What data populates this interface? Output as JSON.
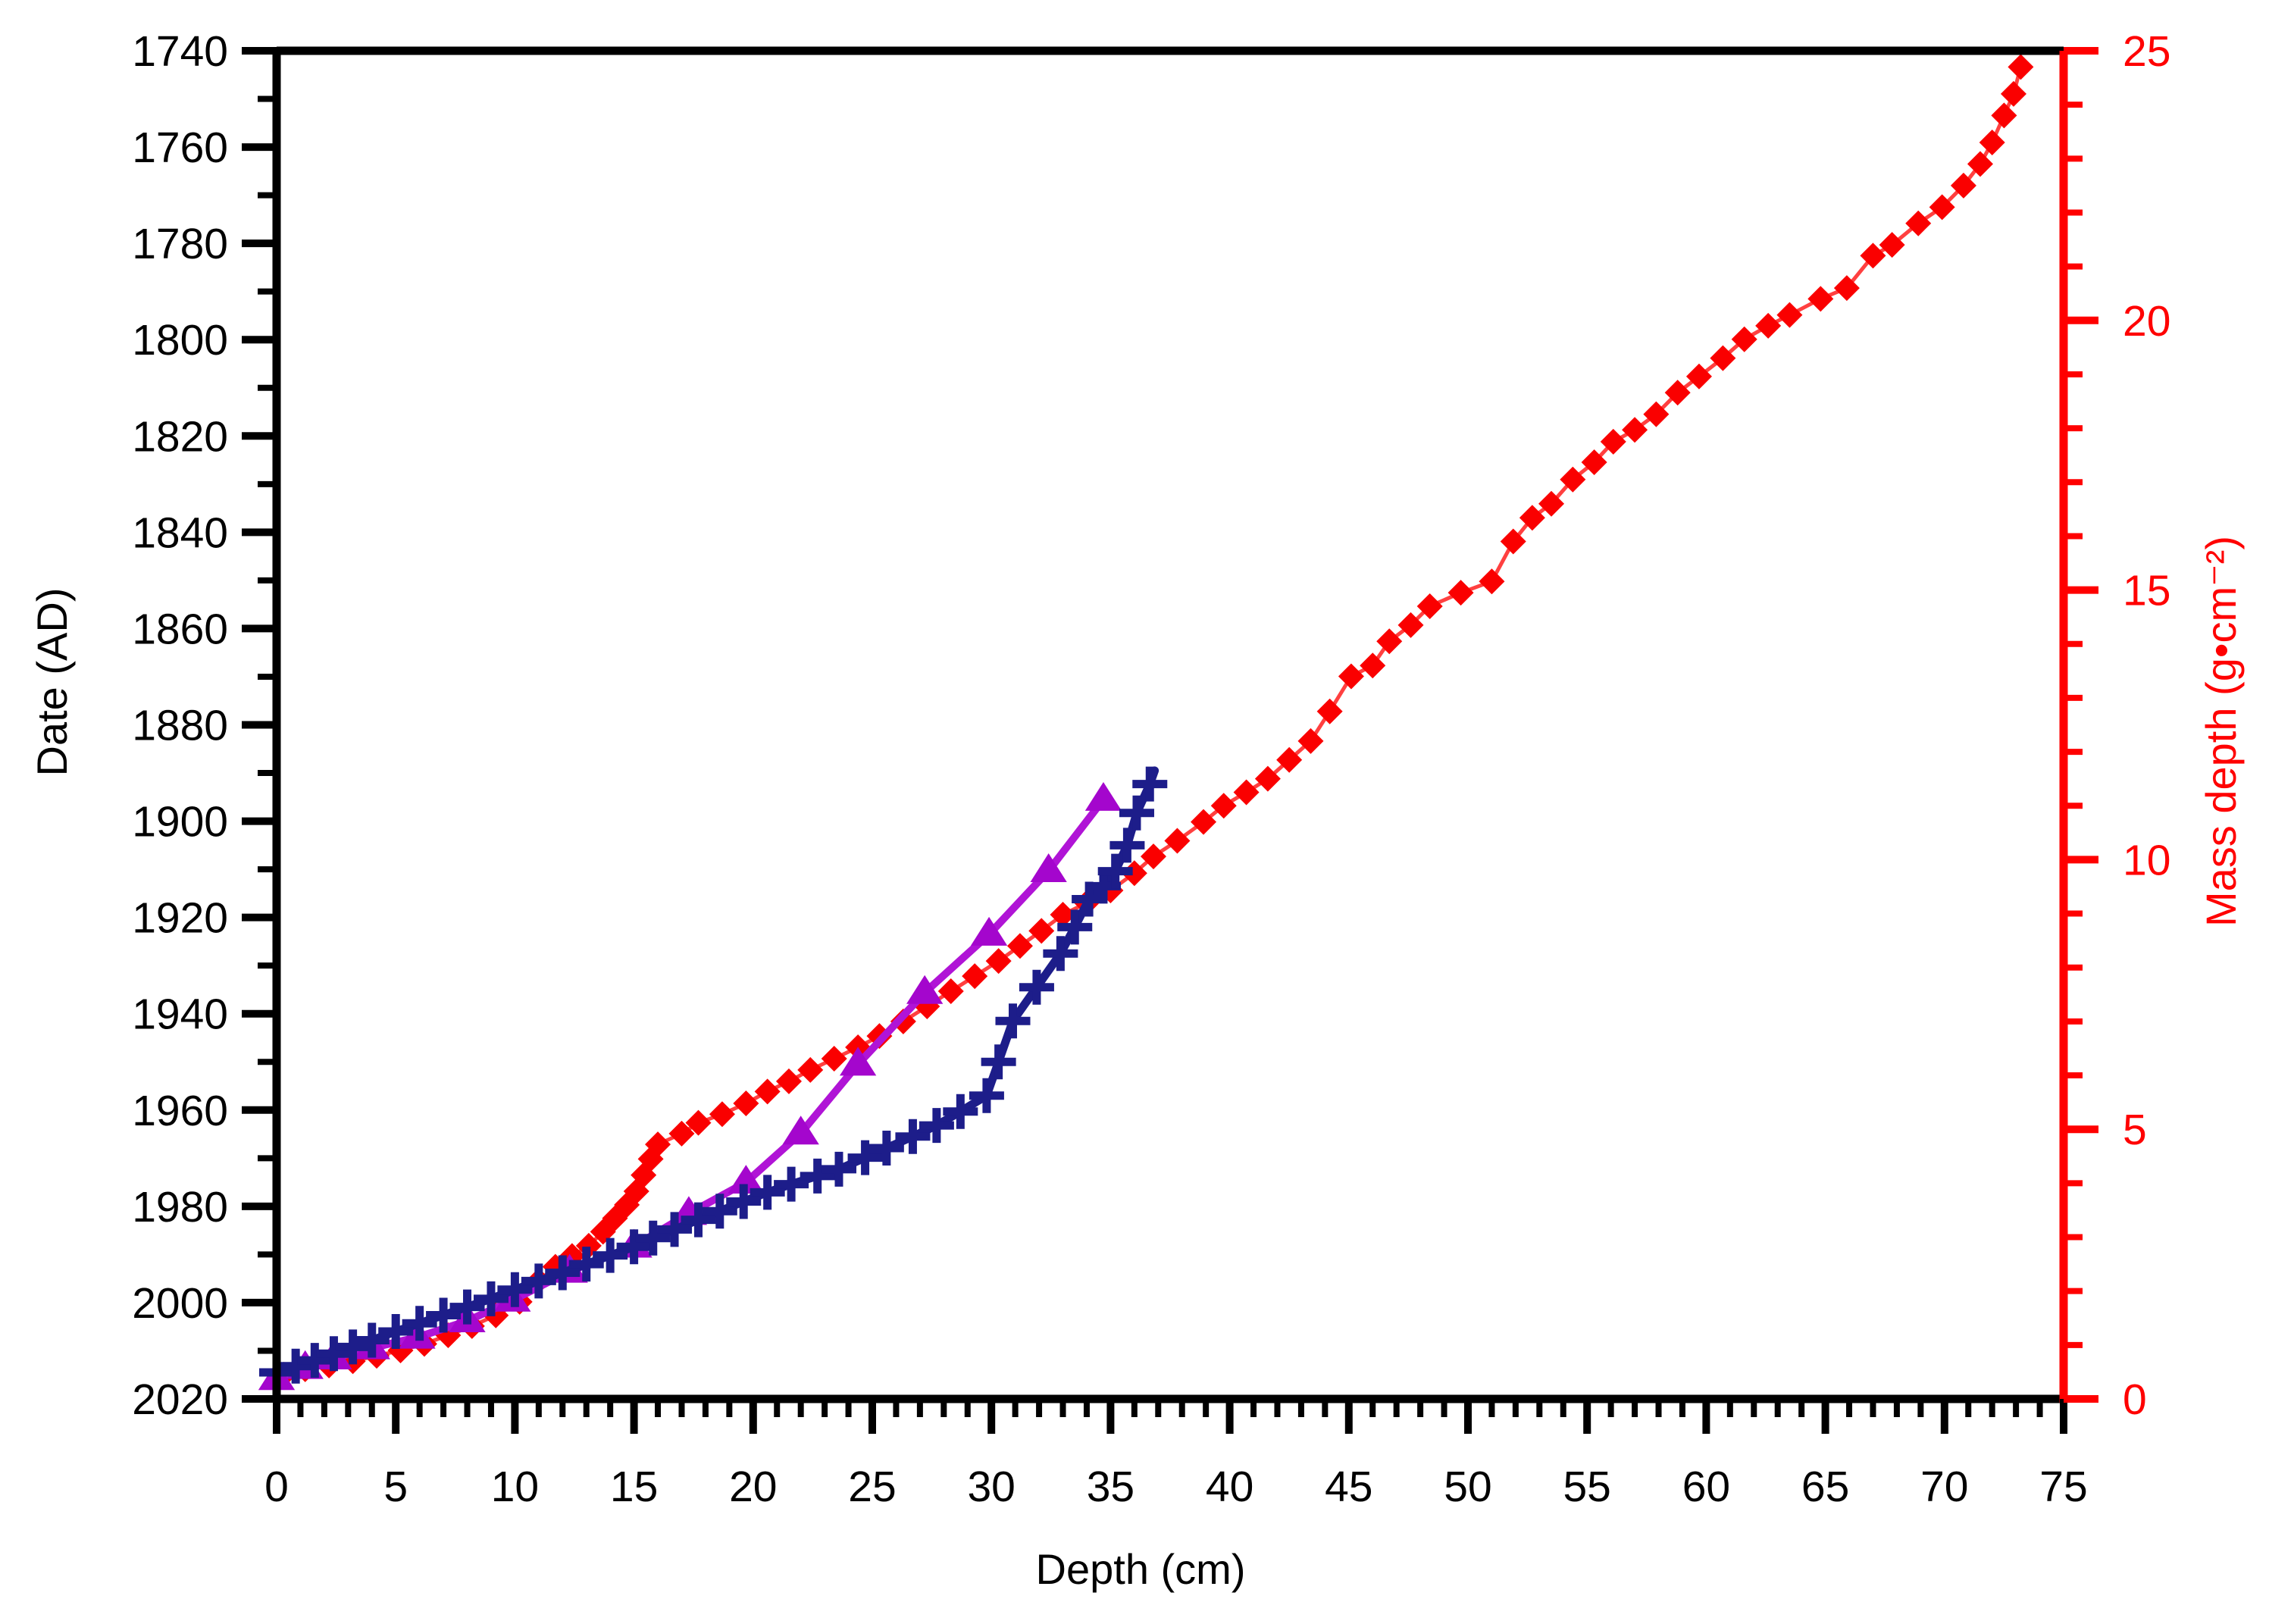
{
  "chart_data": {
    "type": "line",
    "title": "",
    "xlabel": "Depth (cm)",
    "ylabel_left": "Date (AD)",
    "ylabel_right": "Mass depth (g•cm⁻²)",
    "x_axis": {
      "min": 0,
      "max": 75,
      "major_step": 5,
      "minor_step": 1,
      "tick_labels": [
        0,
        5,
        10,
        15,
        20,
        25,
        30,
        35,
        40,
        45,
        50,
        55,
        60,
        65,
        70,
        75
      ]
    },
    "y_axis_left": {
      "min": 1740,
      "max": 2020,
      "major_step": 20,
      "minor_step": 10,
      "inverted": true,
      "tick_labels": [
        1740,
        1760,
        1780,
        1800,
        1820,
        1840,
        1860,
        1880,
        1900,
        1920,
        1940,
        1960,
        1980,
        2000,
        2020
      ],
      "color": "#000000"
    },
    "y_axis_right": {
      "min": 0,
      "max": 25,
      "major_step": 5,
      "minor_step": 1,
      "tick_labels": [
        25,
        20,
        15,
        10,
        5,
        0
      ],
      "color": "#ff0000"
    },
    "grid": false,
    "legend": "none",
    "series": [
      {
        "name": "mass-depth-curve",
        "axis": "right",
        "marker": "diamond",
        "marker_color": "#fa0000",
        "line_color": "#ff4040",
        "line_width": 5,
        "marker_size": 17,
        "points": [
          [
            0.3,
            0.45
          ],
          [
            1.2,
            0.55
          ],
          [
            2.2,
            0.62
          ],
          [
            3.2,
            0.7
          ],
          [
            4.2,
            0.8
          ],
          [
            5.2,
            0.9
          ],
          [
            6.2,
            1.02
          ],
          [
            7.2,
            1.18
          ],
          [
            8.2,
            1.35
          ],
          [
            9.2,
            1.55
          ],
          [
            10.2,
            1.8
          ],
          [
            11,
            2.19
          ],
          [
            11.7,
            2.45
          ],
          [
            12.4,
            2.65
          ],
          [
            13.1,
            2.84
          ],
          [
            13.7,
            3.1
          ],
          [
            14.2,
            3.35
          ],
          [
            14.7,
            3.6
          ],
          [
            15.1,
            3.85
          ],
          [
            15.4,
            4.15
          ],
          [
            15.7,
            4.45
          ],
          [
            16,
            4.72
          ],
          [
            17,
            4.92
          ],
          [
            17.7,
            5.12
          ],
          [
            18.7,
            5.28
          ],
          [
            19.7,
            5.48
          ],
          [
            20.6,
            5.7
          ],
          [
            21.5,
            5.89
          ],
          [
            22.4,
            6.1
          ],
          [
            23.4,
            6.31
          ],
          [
            24.4,
            6.52
          ],
          [
            25.3,
            6.73
          ],
          [
            26.3,
            7.0
          ],
          [
            27.3,
            7.28
          ],
          [
            28.3,
            7.56
          ],
          [
            29.3,
            7.84
          ],
          [
            30.3,
            8.12
          ],
          [
            31.2,
            8.4
          ],
          [
            32.1,
            8.68
          ],
          [
            33,
            8.98
          ],
          [
            34,
            9.2
          ],
          [
            35,
            9.43
          ],
          [
            36,
            9.75
          ],
          [
            36.8,
            10.06
          ],
          [
            37.8,
            10.35
          ],
          [
            38.9,
            10.7
          ],
          [
            39.75,
            11.0
          ],
          [
            40.7,
            11.25
          ],
          [
            41.6,
            11.5
          ],
          [
            42.5,
            11.85
          ],
          [
            43.4,
            12.2
          ],
          [
            44.2,
            12.75
          ],
          [
            45.1,
            13.4
          ],
          [
            46,
            13.6
          ],
          [
            46.7,
            14.05
          ],
          [
            47.6,
            14.35
          ],
          [
            48.4,
            14.7
          ],
          [
            49.7,
            14.95
          ],
          [
            51,
            15.16
          ],
          [
            51.9,
            15.9
          ],
          [
            52.7,
            16.34
          ],
          [
            53.5,
            16.6
          ],
          [
            54.4,
            17.05
          ],
          [
            55.3,
            17.37
          ],
          [
            56.1,
            17.75
          ],
          [
            57,
            17.97
          ],
          [
            57.9,
            18.26
          ],
          [
            58.8,
            18.66
          ],
          [
            59.7,
            18.96
          ],
          [
            60.7,
            19.3
          ],
          [
            61.6,
            19.65
          ],
          [
            62.6,
            19.9
          ],
          [
            63.5,
            20.1
          ],
          [
            64.8,
            20.4
          ],
          [
            65.9,
            20.6
          ],
          [
            67,
            21.2
          ],
          [
            67.8,
            21.4
          ],
          [
            68.9,
            21.8
          ],
          [
            69.9,
            22.1
          ],
          [
            70.8,
            22.5
          ],
          [
            71.5,
            22.9
          ],
          [
            72,
            23.3
          ],
          [
            72.5,
            23.8
          ],
          [
            72.9,
            24.2
          ],
          [
            73.2,
            24.7
          ]
        ]
      },
      {
        "name": "age-depth-model-triangles",
        "axis": "left",
        "marker": "triangle",
        "marker_color": "#a406cd",
        "line_color": "#b014d6",
        "line_width": 10,
        "marker_size": 23,
        "points": [
          [
            0,
            2015.8
          ],
          [
            1.2,
            2013.5
          ],
          [
            2.4,
            2011.5
          ],
          [
            4,
            2009.4
          ],
          [
            5.9,
            2007.2
          ],
          [
            8,
            2003.8
          ],
          [
            9.9,
            1999.5
          ],
          [
            12.3,
            1993.5
          ],
          [
            15,
            1988.3
          ],
          [
            17.3,
            1981.5
          ],
          [
            19.7,
            1975
          ],
          [
            22,
            1964.8
          ],
          [
            24.4,
            1950.5
          ],
          [
            27.2,
            1935.6
          ],
          [
            29.9,
            1923.5
          ],
          [
            32.4,
            1910.3
          ],
          [
            34.7,
            1895.5
          ]
        ]
      },
      {
        "name": "age-depth-model-crosses",
        "axis": "left",
        "marker": "plus",
        "marker_color": "#1d1d8a",
        "line_color": "#1d1d8a",
        "line_width": 11,
        "marker_size": 23,
        "points": [
          [
            0,
            2014.5
          ],
          [
            0.8,
            2013.2
          ],
          [
            1.6,
            2012
          ],
          [
            2.4,
            2010.6
          ],
          [
            3.2,
            2009.2
          ],
          [
            4,
            2007.8
          ],
          [
            5,
            2006
          ],
          [
            6,
            2004.3
          ],
          [
            7,
            2002.6
          ],
          [
            8,
            2000.9
          ],
          [
            9,
            1999.2
          ],
          [
            10,
            1997.3
          ],
          [
            11,
            1995.5
          ],
          [
            12,
            1993.8
          ],
          [
            13,
            1992
          ],
          [
            14,
            1990.2
          ],
          [
            15,
            1988.4
          ],
          [
            15.8,
            1986.6
          ],
          [
            16.7,
            1984.8
          ],
          [
            17.7,
            1982.8
          ],
          [
            18.6,
            1981
          ],
          [
            19.6,
            1979
          ],
          [
            20.6,
            1977.1
          ],
          [
            21.6,
            1975.4
          ],
          [
            22.7,
            1973.7
          ],
          [
            23.6,
            1972.3
          ],
          [
            24.7,
            1969.9
          ],
          [
            25.6,
            1967.9
          ],
          [
            26.7,
            1965.5
          ],
          [
            27.7,
            1963.2
          ],
          [
            28.7,
            1960.3
          ],
          [
            29.8,
            1957
          ],
          [
            30.3,
            1950
          ],
          [
            30.9,
            1941.5
          ],
          [
            31.9,
            1934.5
          ],
          [
            32.9,
            1927.5
          ],
          [
            33.5,
            1922
          ],
          [
            34.1,
            1916.2
          ],
          [
            34.7,
            1913.5
          ],
          [
            35.2,
            1910.4
          ],
          [
            35.7,
            1905
          ],
          [
            36.1,
            1898.3
          ],
          [
            36.65,
            1892.3
          ]
        ],
        "tail": [
          [
            36.85,
            1889.5
          ]
        ]
      }
    ]
  }
}
